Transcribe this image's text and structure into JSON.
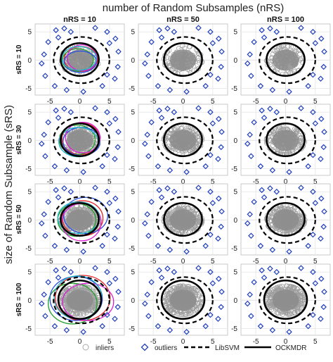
{
  "chart_data": {
    "type": "scatter",
    "title": "number of Random Subsamples (nRS)",
    "ylabel": "size of Random Subsample (sRS)",
    "columns": [
      {
        "label": "nRS = 10",
        "value": 10
      },
      {
        "label": "nRS = 50",
        "value": 50
      },
      {
        "label": "nRS = 100",
        "value": 100
      }
    ],
    "rows": [
      {
        "label": "sRS = 10",
        "value": 10
      },
      {
        "label": "sRS = 30",
        "value": 30
      },
      {
        "label": "sRS = 50",
        "value": 50
      },
      {
        "label": "sRS = 100",
        "value": 100
      }
    ],
    "xlim": [
      -7.5,
      7.5
    ],
    "ylim": [
      -6.2,
      6.4
    ],
    "xticks": [
      -5,
      0,
      5
    ],
    "yticks": [
      -5,
      0,
      5
    ],
    "grid": true,
    "legend": {
      "position": "bottom",
      "entries": [
        {
          "label": "inliers",
          "marker": "circle",
          "color": "#a9a9a9"
        },
        {
          "label": "outliers",
          "marker": "diamond",
          "color": "#1f3fbf"
        },
        {
          "label": "LibSVM",
          "line": "dashed",
          "color": "#000000"
        },
        {
          "label": "OCKMDR",
          "line": "solid",
          "color": "#000000"
        }
      ]
    },
    "inliers_approx": {
      "center": [
        0,
        0
      ],
      "spread_x": 2.8,
      "spread_y": 2.2
    },
    "outliers": [
      [
        -4.0,
        5.3
      ],
      [
        -2.6,
        5.6
      ],
      [
        2.6,
        5.7
      ],
      [
        4.6,
        5.0
      ],
      [
        6.0,
        3.8
      ],
      [
        6.5,
        1.5
      ],
      [
        -6.0,
        1.0
      ],
      [
        -5.3,
        3.2
      ],
      [
        6.4,
        -1.2
      ],
      [
        5.9,
        -3.3
      ],
      [
        -5.8,
        -2.8
      ],
      [
        -4.2,
        -4.6
      ],
      [
        -2.2,
        -5.3
      ],
      [
        0.6,
        -5.6
      ],
      [
        3.8,
        -4.6
      ],
      [
        -6.4,
        -0.6
      ],
      [
        5.0,
        3.0
      ],
      [
        -3.6,
        4.0
      ],
      [
        4.6,
        -2.6
      ],
      [
        -1.5,
        5.0
      ]
    ],
    "boundaries": {
      "LibSVM": {
        "center": [
          0.3,
          0
        ],
        "rx": 4.7,
        "ry": 4.1
      },
      "OCKMDR": [
        {
          "center": [
            0,
            0.1
          ],
          "rx": 3.2,
          "ry": 2.9
        },
        {
          "center": [
            0,
            0.1
          ],
          "rx": 3.2,
          "ry": 2.9
        },
        {
          "center": [
            0,
            0.1
          ],
          "rx": 3.2,
          "ry": 2.9
        },
        {
          "center": [
            0,
            0.1
          ],
          "rx": 3.6,
          "ry": 3.4
        }
      ]
    },
    "subsample_boundaries_nRS10": [
      [
        {
          "color": "#e8202a",
          "center": [
            0.2,
            0.2
          ],
          "rx": 2.8,
          "ry": 2.2
        },
        {
          "color": "#1fa02a",
          "center": [
            -0.3,
            0.0
          ],
          "rx": 2.6,
          "ry": 2.0
        },
        {
          "color": "#2a4fe0",
          "center": [
            0.1,
            -0.3
          ],
          "rx": 2.7,
          "ry": 1.9
        },
        {
          "color": "#d61fd0",
          "center": [
            0.4,
            0.4
          ],
          "rx": 2.5,
          "ry": 2.3
        },
        {
          "color": "#1fb8c9",
          "center": [
            -0.1,
            0.3
          ],
          "rx": 2.9,
          "ry": 2.1
        }
      ],
      [
        {
          "color": "#e8202a",
          "center": [
            0.2,
            0.3
          ],
          "rx": 3.2,
          "ry": 2.8
        },
        {
          "color": "#1fa02a",
          "center": [
            -0.4,
            0.1
          ],
          "rx": 3.0,
          "ry": 2.6
        },
        {
          "color": "#2a4fe0",
          "center": [
            0.3,
            -0.2
          ],
          "rx": 3.1,
          "ry": 2.5
        },
        {
          "color": "#d61fd0",
          "center": [
            0.5,
            0.5
          ],
          "rx": 2.9,
          "ry": 2.7
        },
        {
          "color": "#1fb8c9",
          "center": [
            -0.2,
            -0.3
          ],
          "rx": 3.3,
          "ry": 2.6
        }
      ],
      [
        {
          "color": "#e8202a",
          "center": [
            0.5,
            0.3
          ],
          "rx": 3.4,
          "ry": 3.1
        },
        {
          "color": "#1fa02a",
          "center": [
            -0.5,
            0.0
          ],
          "rx": 3.2,
          "ry": 2.9
        },
        {
          "color": "#2a4fe0",
          "center": [
            1.0,
            0.8
          ],
          "rx": 3.7,
          "ry": 3.2
        },
        {
          "color": "#d61fd0",
          "center": [
            0.3,
            -0.4
          ],
          "rx": 3.3,
          "ry": 3.3
        },
        {
          "color": "#1fb8c9",
          "center": [
            -0.2,
            0.4
          ],
          "rx": 3.5,
          "ry": 2.8
        }
      ],
      [
        {
          "color": "#e8202a",
          "center": [
            0.5,
            0.4
          ],
          "rx": 4.6,
          "ry": 4.0
        },
        {
          "color": "#1fa02a",
          "center": [
            -1.2,
            -0.6
          ],
          "rx": 4.1,
          "ry": 3.6
        },
        {
          "color": "#2a4fe0",
          "center": [
            -0.6,
            0.3
          ],
          "rx": 4.4,
          "ry": 3.9
        },
        {
          "color": "#d61fd0",
          "center": [
            1.4,
            -0.3
          ],
          "rx": 4.3,
          "ry": 3.3
        },
        {
          "color": "#1fb8c9",
          "center": [
            -0.3,
            0.5
          ],
          "rx": 4.0,
          "ry": 3.8
        }
      ]
    ]
  }
}
